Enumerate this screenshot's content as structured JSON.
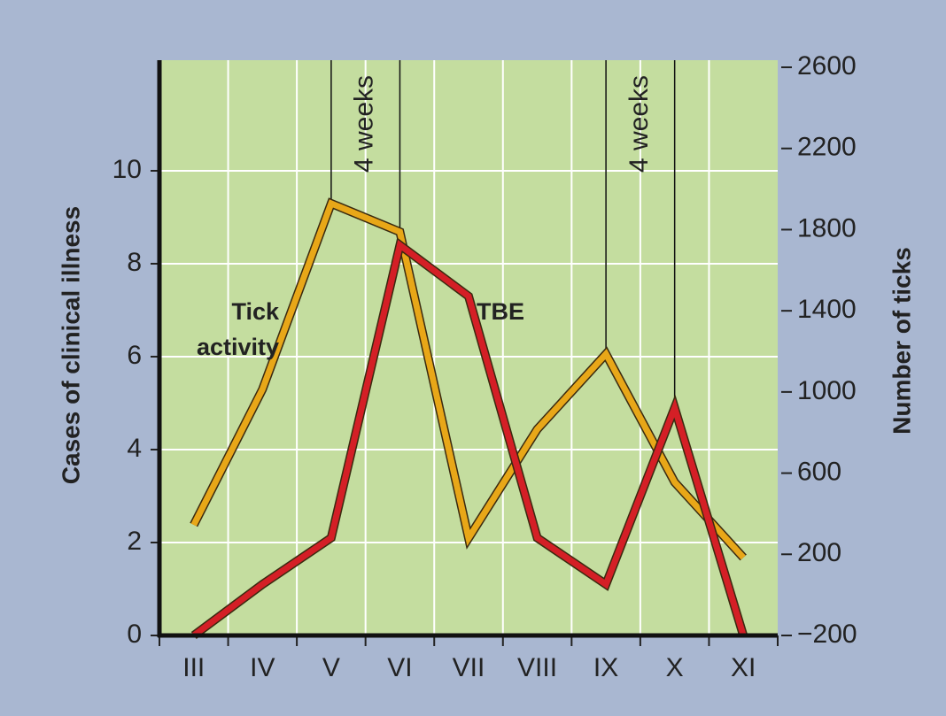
{
  "chart_data": {
    "type": "line",
    "categories": [
      "III",
      "IV",
      "V",
      "VI",
      "VII",
      "VIII",
      "IX",
      "X",
      "XI"
    ],
    "series": [
      {
        "name": "Tick activity",
        "color": "#e8a718",
        "axis": "y2",
        "values": [
          345,
          1013,
          1929,
          1789,
          280,
          816,
          1187,
          555,
          184
        ]
      },
      {
        "name": "TBE",
        "color": "#d41f26",
        "values": [
          0,
          1.1,
          2.1,
          8.4,
          7.3,
          2.1,
          1.1,
          4.9,
          0
        ]
      }
    ],
    "ylabel": "Cases of clinical illness",
    "y2label": "Number of ticks",
    "ylim": [
      0,
      12.38
    ],
    "yticks": [
      0,
      2,
      4,
      6,
      8,
      10
    ],
    "y2lim": [
      -200,
      2635
    ],
    "y2ticks": [
      {
        "value": -200,
        "label": "−200"
      },
      200,
      600,
      1000,
      1400,
      1800,
      2200,
      2600
    ],
    "grid": true,
    "annotations": [
      {
        "text": "4 weeks",
        "start": "V",
        "end": "VI"
      },
      {
        "text": "4 weeks",
        "start": "IX",
        "end": "X"
      }
    ]
  }
}
